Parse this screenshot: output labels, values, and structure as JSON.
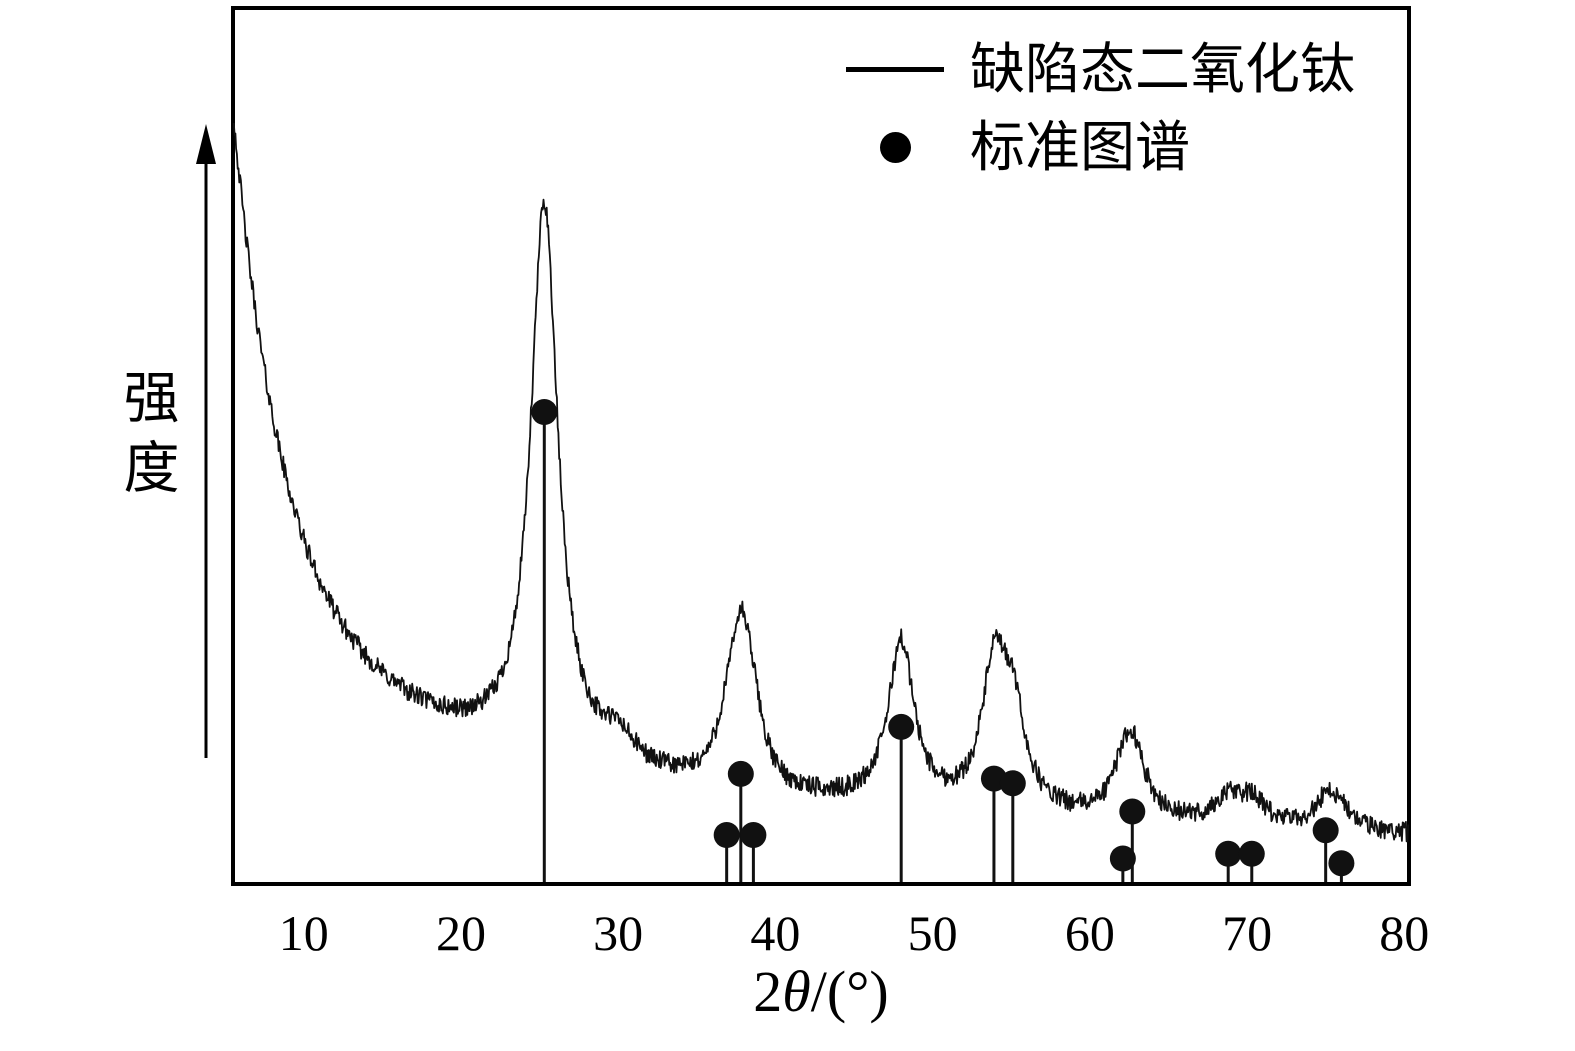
{
  "chart_data": {
    "type": "line",
    "xlabel": "2θ/(°)",
    "xlabel_parts": [
      "2",
      "θ",
      "/(°)"
    ],
    "ylabel": "强度",
    "x_domain": [
      5.5,
      80.3
    ],
    "x_ticks": [
      10,
      20,
      30,
      40,
      50,
      60,
      70,
      80
    ],
    "y_axis_style": "arrow-no-ticks",
    "grid": false,
    "legend_position": "top-right-inside",
    "legend": [
      {
        "label": "缺陷态二氧化钛",
        "marker": "line"
      },
      {
        "label": "标准图谱",
        "marker": "dot"
      }
    ],
    "series": [
      {
        "name": "缺陷态二氧化钛",
        "type": "noisy_line",
        "color": "#111111",
        "noise_amplitude": 0.013,
        "noise_seed": 42,
        "step_deg": 0.05,
        "background": {
          "fast": {
            "amplitude": 0.62,
            "tau": 3.0
          },
          "slow": {
            "amplitude": 0.28,
            "tau": 13.0
          },
          "flat": {
            "offset": 0.065,
            "slope": -0.0007
          }
        },
        "peaks": [
          {
            "center": 25.3,
            "height": 0.73,
            "hwhm": 1.05
          },
          {
            "center": 30.0,
            "height": 0.035,
            "hwhm": 1.3
          },
          {
            "center": 36.9,
            "height": 0.045,
            "hwhm": 0.8
          },
          {
            "center": 37.8,
            "height": 0.185,
            "hwhm": 0.85
          },
          {
            "center": 38.6,
            "height": 0.06,
            "hwhm": 0.8
          },
          {
            "center": 48.0,
            "height": 0.215,
            "hwhm": 1.0
          },
          {
            "center": 53.9,
            "height": 0.175,
            "hwhm": 0.95
          },
          {
            "center": 55.1,
            "height": 0.12,
            "hwhm": 0.95
          },
          {
            "center": 62.1,
            "height": 0.03,
            "hwhm": 0.8
          },
          {
            "center": 62.7,
            "height": 0.095,
            "hwhm": 1.0
          },
          {
            "center": 68.8,
            "height": 0.032,
            "hwhm": 1.0
          },
          {
            "center": 70.3,
            "height": 0.032,
            "hwhm": 1.0
          },
          {
            "center": 75.1,
            "height": 0.042,
            "hwhm": 0.9
          },
          {
            "center": 76.0,
            "height": 0.018,
            "hwhm": 0.8
          }
        ]
      },
      {
        "name": "标准图谱",
        "type": "stick",
        "color": "#111111",
        "marker": "filled-circle",
        "peaks": [
          {
            "two_theta": 25.3,
            "rel_intensity": 100
          },
          {
            "two_theta": 36.9,
            "rel_intensity": 10
          },
          {
            "two_theta": 37.8,
            "rel_intensity": 23
          },
          {
            "two_theta": 38.6,
            "rel_intensity": 10
          },
          {
            "two_theta": 48.0,
            "rel_intensity": 33
          },
          {
            "two_theta": 53.9,
            "rel_intensity": 22
          },
          {
            "two_theta": 55.1,
            "rel_intensity": 21
          },
          {
            "two_theta": 62.1,
            "rel_intensity": 5
          },
          {
            "two_theta": 62.7,
            "rel_intensity": 15
          },
          {
            "two_theta": 68.8,
            "rel_intensity": 6
          },
          {
            "two_theta": 70.3,
            "rel_intensity": 6
          },
          {
            "two_theta": 75.0,
            "rel_intensity": 11
          },
          {
            "two_theta": 76.0,
            "rel_intensity": 4
          }
        ]
      }
    ],
    "colors": {
      "foreground": "#000000",
      "background": "#ffffff"
    }
  }
}
